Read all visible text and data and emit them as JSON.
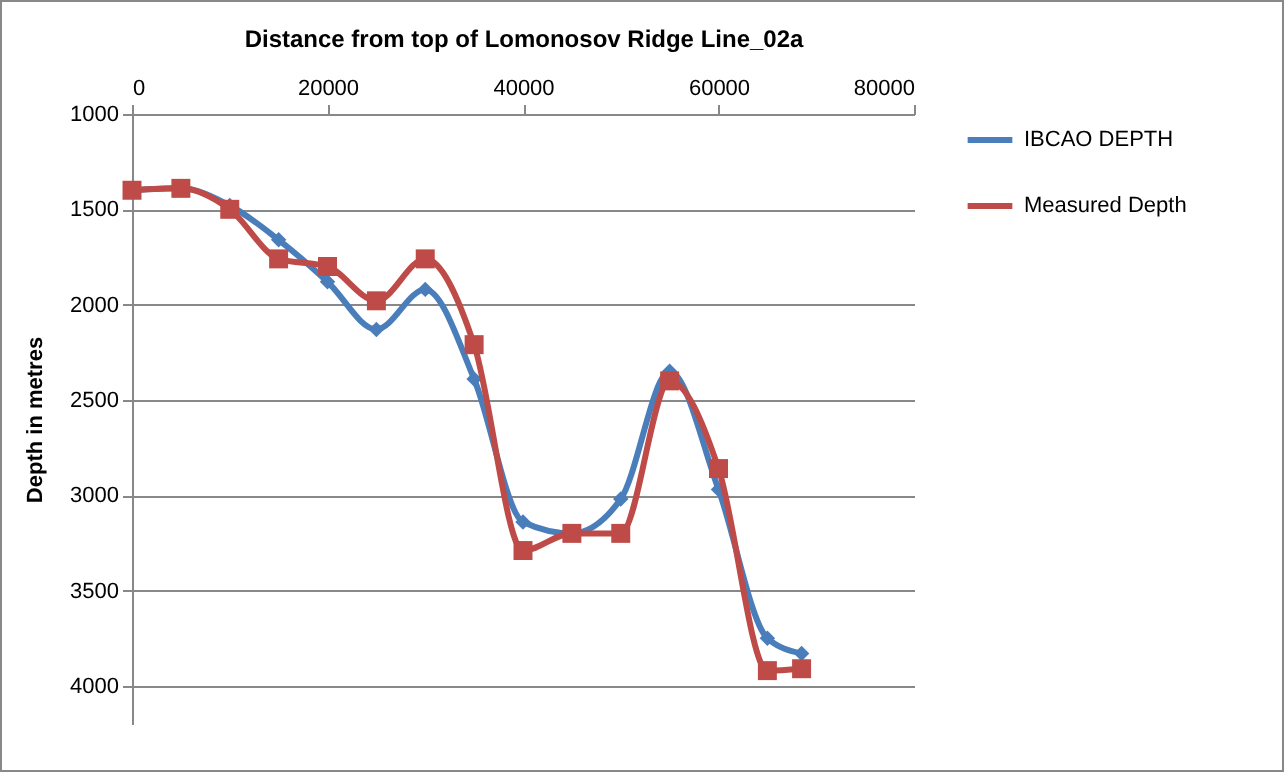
{
  "chart_data": {
    "type": "line",
    "xlabel": "Distance from top of Lomonosov Ridge Line_02a",
    "ylabel": "Depth in metres",
    "x": [
      0,
      5000,
      10000,
      15000,
      20000,
      25000,
      30000,
      35000,
      40000,
      45000,
      50000,
      55000,
      60000,
      65000,
      68500
    ],
    "xlim": [
      0,
      80000
    ],
    "xticks": [
      0,
      20000,
      40000,
      60000,
      80000
    ],
    "ylim": [
      4200,
      1000
    ],
    "yticks": [
      1000,
      1500,
      2000,
      2500,
      3000,
      3500,
      4000
    ],
    "grid": "y",
    "legend": "right",
    "series": [
      {
        "name": "IBCAO  DEPTH",
        "color": "#4a7ebb",
        "marker": "diamond",
        "values": [
          1400,
          1390,
          1480,
          1660,
          1880,
          2130,
          1920,
          2390,
          3140,
          3200,
          3020,
          2350,
          2970,
          3750,
          3830
        ]
      },
      {
        "name": "Measured Depth",
        "color": "#be4b48",
        "marker": "square",
        "values": [
          1400,
          1390,
          1500,
          1760,
          1800,
          1980,
          1760,
          2210,
          3290,
          3200,
          3200,
          2400,
          2860,
          3920,
          3910
        ]
      }
    ]
  }
}
